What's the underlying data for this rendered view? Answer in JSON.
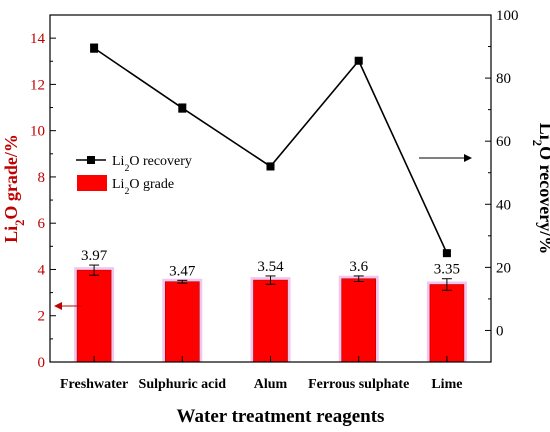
{
  "chart_data": {
    "type": "bar+line",
    "categories": [
      "Freshwater",
      "Sulphuric acid",
      "Alum",
      "Ferrous sulphate",
      "Lime"
    ],
    "xlabel": "Water treatment reagents",
    "ylabel_left_main": "Li",
    "ylabel_left_sub": "2",
    "ylabel_left_rest": "O grade/%",
    "ylabel_right_main": "Li",
    "ylabel_right_sub": "2",
    "ylabel_right_rest": "O recovery/%",
    "y_left": {
      "min": 0,
      "max": 15,
      "ticks": [
        0,
        2,
        4,
        6,
        8,
        10,
        12,
        14
      ]
    },
    "y_right": {
      "min": -10,
      "max": 100,
      "ticks": [
        0,
        20,
        40,
        60,
        80,
        100
      ]
    },
    "series": [
      {
        "name_main": "Li",
        "name_sub": "2",
        "name_rest": "O grade",
        "type": "bar",
        "axis": "left",
        "color": "#ff0000",
        "values": [
          3.97,
          3.47,
          3.54,
          3.6,
          3.35
        ],
        "errors": [
          0.22,
          0.06,
          0.18,
          0.12,
          0.25
        ],
        "labels": [
          "3.97",
          "3.47",
          "3.54",
          "3.6",
          "3.35"
        ]
      },
      {
        "name_main": "Li",
        "name_sub": "2",
        "name_rest": "O recovery",
        "type": "line",
        "axis": "right",
        "color": "#000000",
        "values": [
          89.5,
          70.5,
          52,
          85.5,
          24.5
        ],
        "errors": [
          1.3,
          1.3,
          1.1,
          0.6,
          0.5
        ]
      }
    ]
  }
}
